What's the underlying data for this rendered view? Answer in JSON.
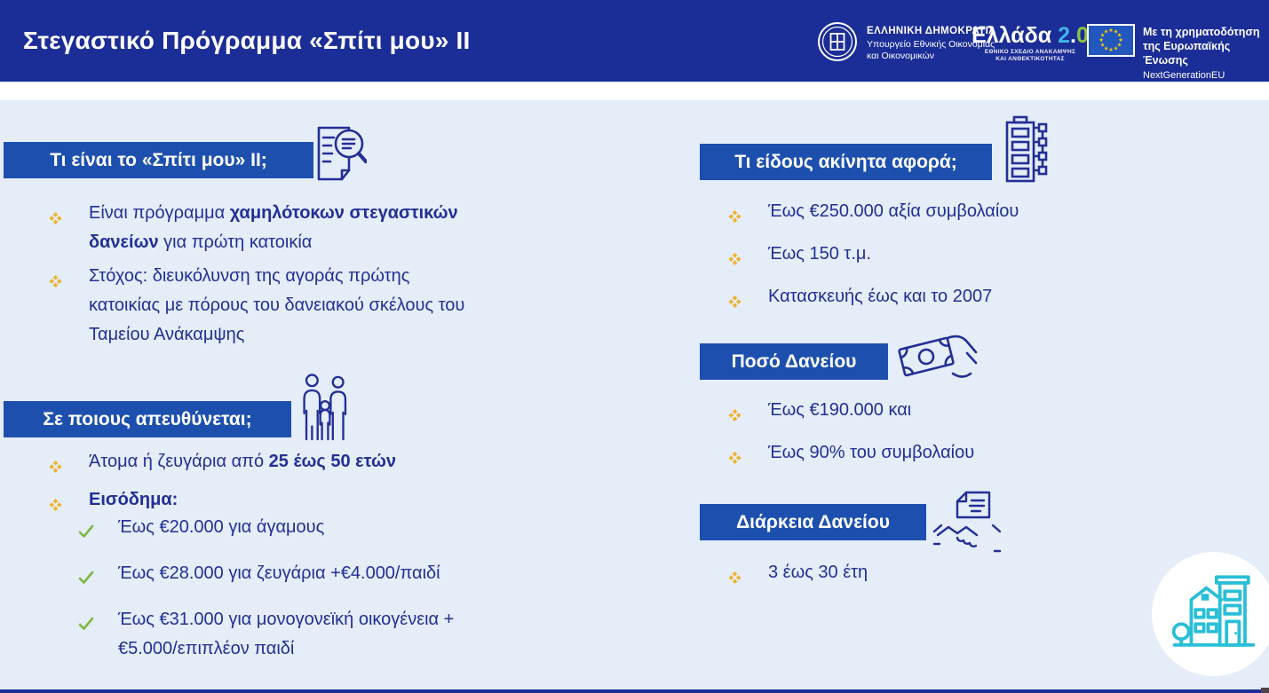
{
  "header": {
    "title": "Στεγαστικό Πρόγραμμα «Σπίτι μου» II",
    "gov": {
      "name": "ΕΛΛΗΝΙΚΗ ΔΗΜΟΚΡΑΤΙΑ",
      "ministry_line1": "Υπουργείο Εθνικής Οικονομίας",
      "ministry_line2": "και Οικονομικών"
    },
    "greece20": {
      "word": "Ελλάδα",
      "two": "2",
      "dot": ".",
      "zero": "0",
      "sub1": "ΕΘΝΙΚΟ ΣΧΕΔΙΟ ΑΝΑΚΑΜΨΗΣ",
      "sub2": "ΚΑΙ ΑΝΘΕΚΤΙΚΟΤΗΤΑΣ"
    },
    "eu": {
      "line1": "Με τη χρηματοδότηση",
      "line2": "της Ευρωπαϊκής Ένωσης",
      "line3": "NextGenerationEU"
    }
  },
  "sections": {
    "what_is": {
      "title": "Τι είναι το «Σπίτι μου» II;",
      "bullets": [
        {
          "pre": "Είναι πρόγραμμα ",
          "bold": "χαμηλότοκων στεγαστικών δανείων",
          "post": " για πρώτη κατοικία"
        },
        {
          "pre": "Στόχος: διευκόλυνση της αγοράς πρώτης κατοικίας με πόρους του δανειακού σκέλους του Ταμείου Ανάκαμψης",
          "bold": "",
          "post": ""
        }
      ]
    },
    "who": {
      "title": "Σε ποιους απευθύνεται;",
      "bullets": [
        {
          "pre": "Άτομα ή ζευγάρια από ",
          "bold": "25 έως 50 ετών",
          "post": ""
        },
        {
          "pre": "",
          "bold": "Εισόδημα:",
          "post": ""
        }
      ],
      "income_details": [
        "Έως €20.000 για άγαμους",
        "Έως €28.000 για ζευγάρια +€4.000/παιδί",
        "Έως €31.000 για μονογονεϊκή οικογένεια +€5.000/επιπλέον παιδί"
      ]
    },
    "property": {
      "title": "Τι είδους ακίνητα αφορά;",
      "bullets": [
        "Έως €250.000 αξία συμβολαίου",
        "Έως 150 τ.μ.",
        "Κατασκευής έως και το 2007"
      ]
    },
    "loan_amount": {
      "title": "Ποσό Δανείου",
      "bullets": [
        "Έως €190.000 και",
        "Έως 90% του συμβολαίου"
      ]
    },
    "loan_duration": {
      "title": "Διάρκεια Δανείου",
      "bullets": [
        "3 έως 30 έτη"
      ]
    }
  },
  "icons": {
    "star": "★",
    "diamond_bullet": "❖",
    "check": "✓"
  },
  "colors": {
    "header_bg": "#1B2D96",
    "section_bar_bg": "#1D50AE",
    "body_bg": "#E4EDF8",
    "text_navy": "#232F95",
    "bullet_gold": "#F0B32E",
    "check_green": "#7DB842",
    "accent_teal": "#29BFD6",
    "eu_flag_blue": "#2257BE",
    "star_yellow": "#FFCC00"
  }
}
